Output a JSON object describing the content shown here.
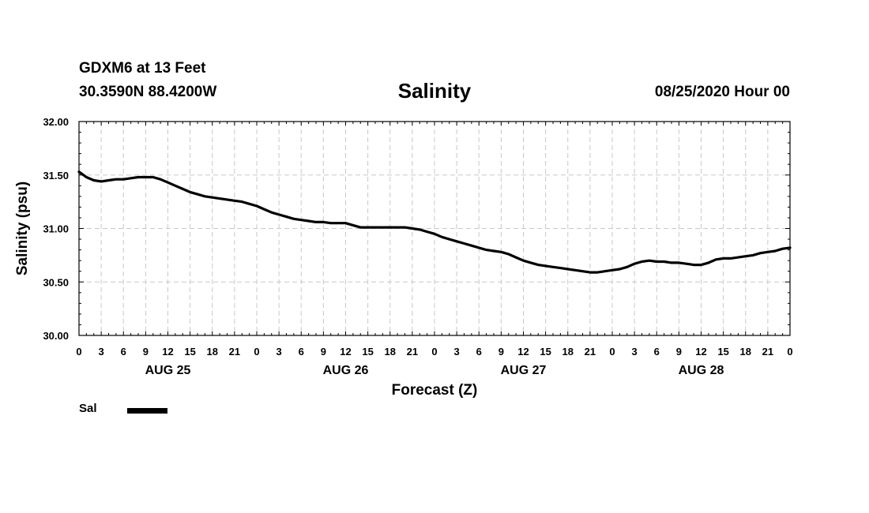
{
  "header": {
    "station": "GDXM6 at 13 Feet",
    "coords": "30.3590N 88.4200W",
    "issued": "08/25/2020 Hour 00"
  },
  "legend": {
    "label": "Sal",
    "color": "#000000"
  },
  "chart_data": {
    "type": "line",
    "title": "Salinity",
    "xlabel": "Forecast (Z)",
    "ylabel": "Salinity (psu)",
    "ylim": [
      30.0,
      32.0
    ],
    "xlim_hours": [
      0,
      96
    ],
    "yticks": [
      "30.00",
      "30.50",
      "31.00",
      "31.50",
      "32.00"
    ],
    "xtick_labels": [
      "0",
      "3",
      "6",
      "9",
      "12",
      "15",
      "18",
      "21",
      "0",
      "3",
      "6",
      "9",
      "12",
      "15",
      "18",
      "21",
      "0",
      "3",
      "6",
      "9",
      "12",
      "15",
      "18",
      "21",
      "0",
      "3",
      "6",
      "9",
      "12",
      "15",
      "18",
      "21",
      "0"
    ],
    "day_labels": [
      {
        "label": "AUG 25",
        "hour": 12
      },
      {
        "label": "AUG 26",
        "hour": 36
      },
      {
        "label": "AUG 27",
        "hour": 60
      },
      {
        "label": "AUG 28",
        "hour": 84
      }
    ],
    "grid": true,
    "series": [
      {
        "name": "Sal",
        "x": [
          0,
          1,
          2,
          3,
          4,
          5,
          6,
          7,
          8,
          9,
          10,
          11,
          12,
          13,
          14,
          15,
          16,
          17,
          18,
          19,
          20,
          21,
          22,
          23,
          24,
          25,
          26,
          27,
          28,
          29,
          30,
          31,
          32,
          33,
          34,
          35,
          36,
          37,
          38,
          39,
          40,
          41,
          42,
          43,
          44,
          45,
          46,
          47,
          48,
          49,
          50,
          51,
          52,
          53,
          54,
          55,
          56,
          57,
          58,
          59,
          60,
          61,
          62,
          63,
          64,
          65,
          66,
          67,
          68,
          69,
          70,
          71,
          72,
          73,
          74,
          75,
          76,
          77,
          78,
          79,
          80,
          81,
          82,
          83,
          84,
          85,
          86,
          87,
          88,
          89,
          90,
          91,
          92,
          93,
          94,
          95,
          96
        ],
        "values": [
          31.53,
          31.48,
          31.45,
          31.44,
          31.45,
          31.46,
          31.46,
          31.47,
          31.48,
          31.48,
          31.48,
          31.46,
          31.43,
          31.4,
          31.37,
          31.34,
          31.32,
          31.3,
          31.29,
          31.28,
          31.27,
          31.26,
          31.25,
          31.23,
          31.21,
          31.18,
          31.15,
          31.13,
          31.11,
          31.09,
          31.08,
          31.07,
          31.06,
          31.06,
          31.05,
          31.05,
          31.05,
          31.03,
          31.01,
          31.01,
          31.01,
          31.01,
          31.01,
          31.01,
          31.01,
          31.0,
          30.99,
          30.97,
          30.95,
          30.92,
          30.9,
          30.88,
          30.86,
          30.84,
          30.82,
          30.8,
          30.79,
          30.78,
          30.76,
          30.73,
          30.7,
          30.68,
          30.66,
          30.65,
          30.64,
          30.63,
          30.62,
          30.61,
          30.6,
          30.59,
          30.59,
          30.6,
          30.61,
          30.62,
          30.64,
          30.67,
          30.69,
          30.7,
          30.69,
          30.69,
          30.68,
          30.68,
          30.67,
          30.66,
          30.66,
          30.68,
          30.71,
          30.72,
          30.72,
          30.73,
          30.74,
          30.75,
          30.77,
          30.78,
          30.79,
          30.81,
          30.82
        ]
      }
    ]
  }
}
